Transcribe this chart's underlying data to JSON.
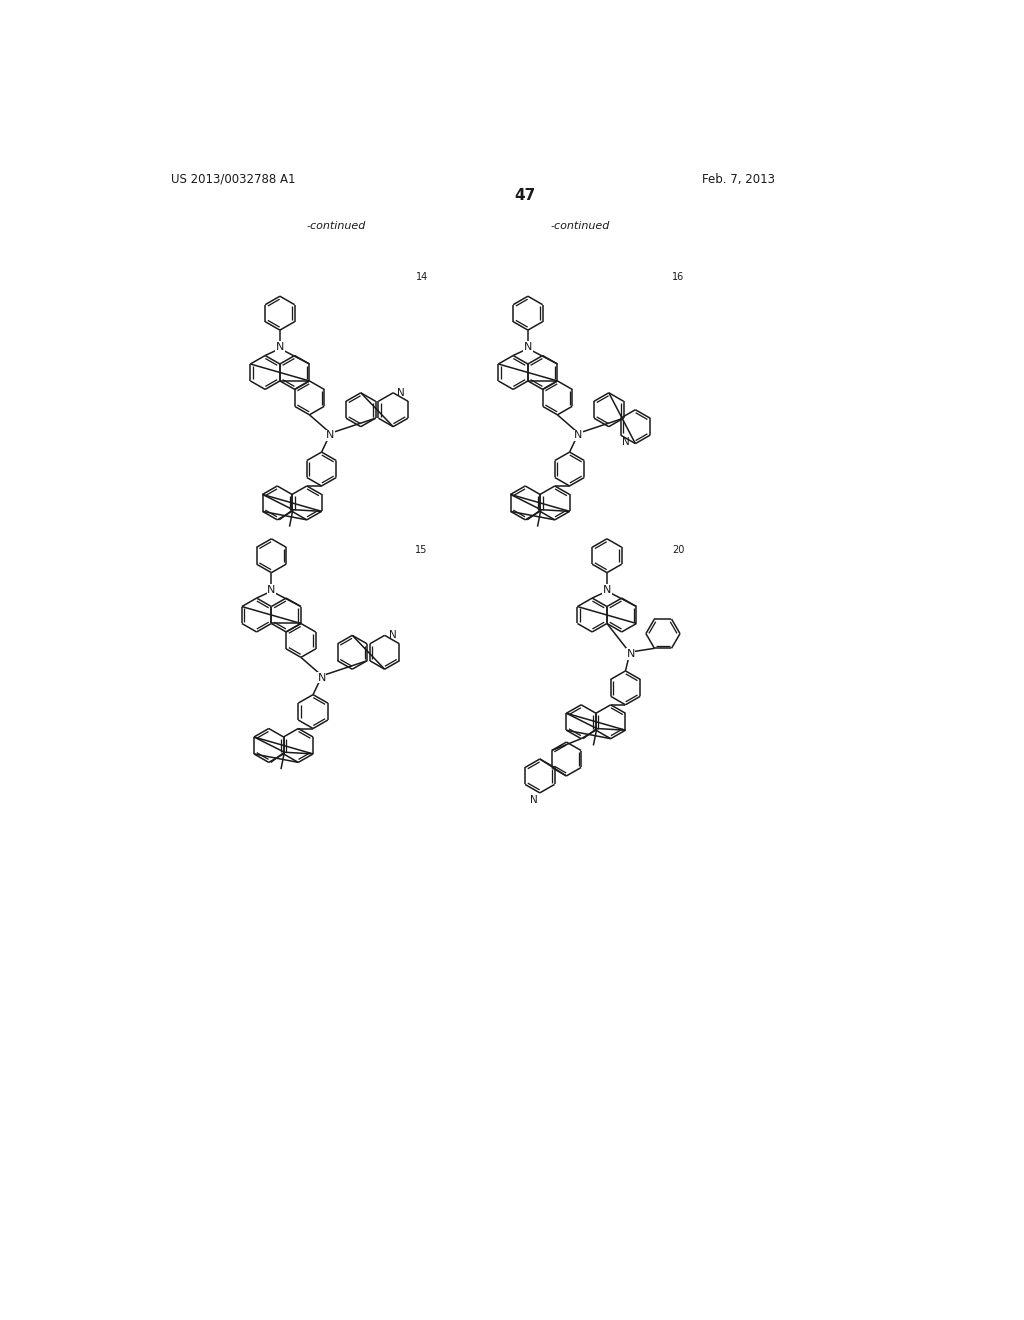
{
  "page_number": "47",
  "patent_number": "US 2013/0032788 A1",
  "patent_date": "Feb. 7, 2013",
  "continued_left": "-continued",
  "continued_right": "-continued",
  "background_color": "#ffffff",
  "line_color": "#1a1a1a",
  "text_color": "#1a1a1a"
}
